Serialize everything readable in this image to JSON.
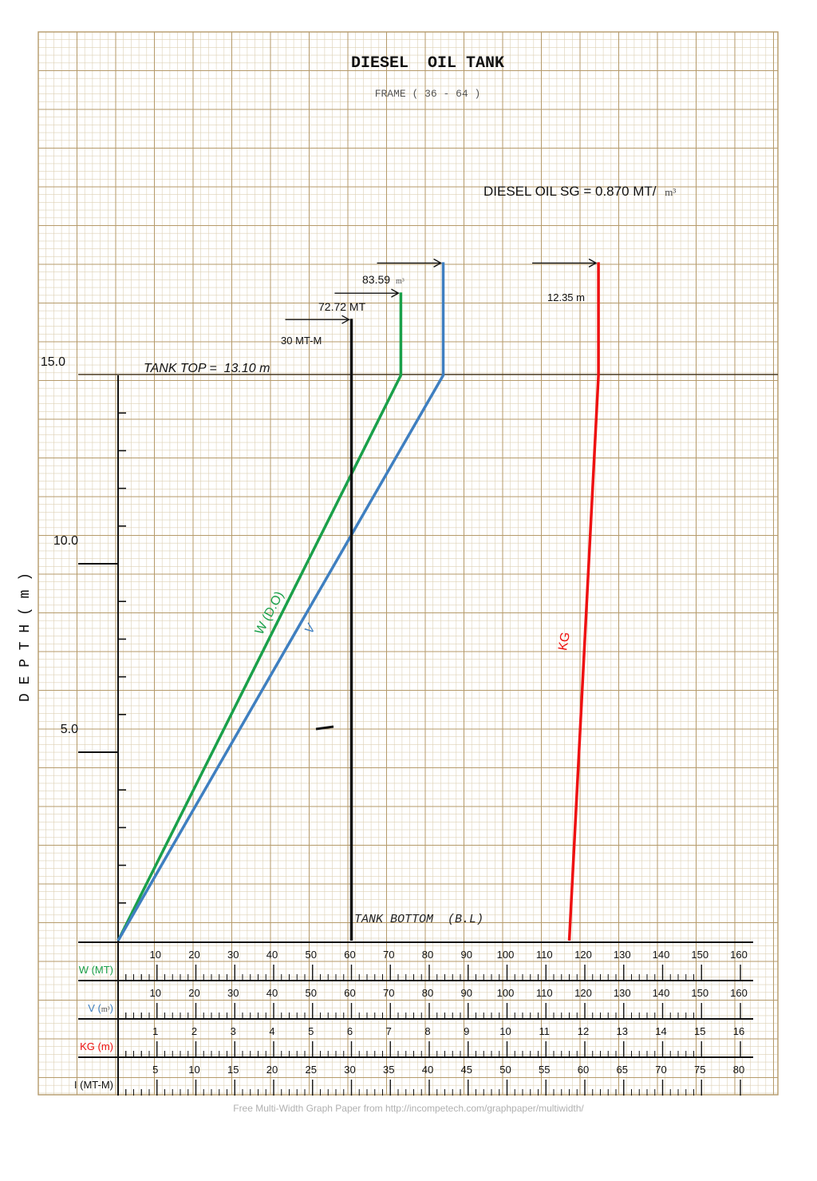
{
  "chart_data": {
    "type": "line",
    "title": "DIESEL  OIL TANK",
    "subtitle": "FRAME ( 36 - 64 )",
    "sg_note": "DIESEL OIL SG = 0.870 MT/",
    "sg_unit": "m³",
    "ylabel": "D E P T H ( m )",
    "y_tick_labels": [
      "15.0",
      "10.0",
      "5.0"
    ],
    "y_tick_values": [
      15,
      10,
      5
    ],
    "ylim": [
      0,
      15
    ],
    "tank_top_label": "TANK TOP =  13.10 m",
    "tank_bottom_label": "TANK BOTTOM  (B.L)",
    "colors": {
      "W": "#1aa04a",
      "V": "#3f7fc0",
      "KG": "#ee1111",
      "I": "#111111",
      "grid_major": "#b59a6a",
      "grid_minor": "#ddd0b4"
    },
    "series": [
      {
        "key": "W",
        "name": "W (D.O)",
        "axis": "W (MT)",
        "points": [
          [
            0,
            0
          ],
          [
            72.7,
            15
          ],
          [
            72.7,
            17.2
          ]
        ],
        "end_label": "72.72 MT",
        "end_unit": ""
      },
      {
        "key": "V",
        "name": "V",
        "axis": "V (m³)",
        "points": [
          [
            0,
            0
          ],
          [
            83.6,
            15
          ],
          [
            83.6,
            18.0
          ]
        ],
        "end_label": "83.59",
        "end_unit": "m³"
      },
      {
        "key": "KG",
        "name": "KG",
        "axis": "KG (m)",
        "points": [
          [
            11.6,
            0
          ],
          [
            12.35,
            15
          ],
          [
            12.35,
            18.0
          ]
        ],
        "end_label": "12.35 m",
        "end_unit": ""
      },
      {
        "key": "I",
        "name": "",
        "axis": "I (MT-M)",
        "points": [
          [
            30,
            0
          ],
          [
            30,
            15
          ],
          [
            30,
            16.5
          ]
        ],
        "end_label": "30 MT-M",
        "end_unit": ""
      }
    ],
    "x_axes": [
      {
        "key": "W",
        "label": "W (MT)",
        "unit": "",
        "max": 160,
        "ticks": [
          "10",
          "20",
          "30",
          "40",
          "50",
          "60",
          "70",
          "80",
          "90",
          "100",
          "110",
          "120",
          "130",
          "140",
          "150",
          "160"
        ]
      },
      {
        "key": "V",
        "label": "V (",
        "unit": "m³",
        "label_end": ")",
        "max": 160,
        "ticks": [
          "10",
          "20",
          "30",
          "40",
          "50",
          "60",
          "70",
          "80",
          "90",
          "100",
          "110",
          "120",
          "130",
          "140",
          "150",
          "160"
        ]
      },
      {
        "key": "KG",
        "label": "KG (m)",
        "unit": "",
        "max": 16,
        "ticks": [
          "1",
          "2",
          "3",
          "4",
          "5",
          "6",
          "7",
          "8",
          "9",
          "10",
          "11",
          "12",
          "13",
          "14",
          "15",
          "16"
        ]
      },
      {
        "key": "I",
        "label": "I (MT-M)",
        "unit": "",
        "max": 80,
        "ticks": [
          "5",
          "10",
          "15",
          "20",
          "25",
          "30",
          "35",
          "40",
          "45",
          "50",
          "55",
          "60",
          "65",
          "70",
          "75",
          "80"
        ]
      }
    ]
  },
  "footer": "Free Multi-Width Graph Paper from http://incompetech.com/graphpaper/multiwidth/"
}
